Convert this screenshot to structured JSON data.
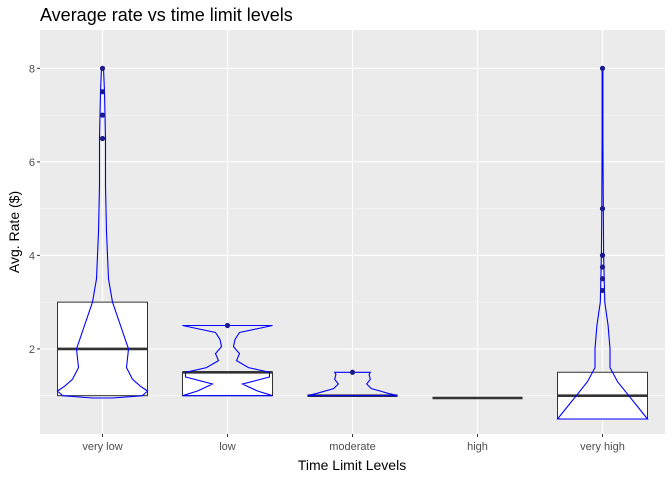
{
  "chart_data": {
    "type": "boxplot+violin",
    "title": "Average rate vs time limit levels",
    "xlabel": "Time Limit Levels",
    "ylabel": "Avg. Rate ($)",
    "categories": [
      "very low",
      "low",
      "moderate",
      "high",
      "very high"
    ],
    "y_ticks": [
      2,
      4,
      6,
      8
    ],
    "ylim": [
      0.18,
      8.82
    ],
    "grid": true,
    "background": "#ebebeb",
    "gridline_color": "#ffffff",
    "box_edge_color": "#333333",
    "violin_color": "#0000ff",
    "point_color": "#1a1a8c",
    "groups": [
      {
        "category": "very low",
        "box": {
          "q1": 1.0,
          "median": 2.0,
          "q3": 3.0
        },
        "violin": [
          [
            0.95,
            0.01
          ],
          [
            1.0,
            0.04
          ],
          [
            1.1,
            0.045
          ],
          [
            1.2,
            0.038
          ],
          [
            1.35,
            0.03
          ],
          [
            1.6,
            0.024
          ],
          [
            2.0,
            0.026
          ],
          [
            2.5,
            0.018
          ],
          [
            3.0,
            0.01
          ],
          [
            3.5,
            0.006
          ],
          [
            4.5,
            0.004
          ],
          [
            5.5,
            0.003
          ],
          [
            6.5,
            0.003
          ],
          [
            7.5,
            0.002
          ],
          [
            8.0,
            0.001
          ]
        ],
        "outliers": [
          6.5,
          7.0,
          7.5,
          8.0
        ]
      },
      {
        "category": "low",
        "box": {
          "q1": 1.0,
          "median": 1.5,
          "q3": 1.5
        },
        "violin": [
          [
            1.0,
            0.15
          ],
          [
            1.1,
            0.1
          ],
          [
            1.25,
            0.05
          ],
          [
            1.4,
            0.14
          ],
          [
            1.5,
            0.14
          ],
          [
            1.6,
            0.07
          ],
          [
            1.75,
            0.03
          ],
          [
            1.9,
            0.04
          ],
          [
            2.05,
            0.02
          ],
          [
            2.2,
            0.025
          ],
          [
            2.35,
            0.04
          ],
          [
            2.5,
            0.15
          ]
        ],
        "outliers": [
          2.5
        ]
      },
      {
        "category": "moderate",
        "box": {
          "q1": 1.0,
          "median": 1.0,
          "q3": 1.0
        },
        "violin": [
          [
            1.0,
            0.38
          ],
          [
            1.05,
            0.3
          ],
          [
            1.15,
            0.16
          ],
          [
            1.25,
            0.12
          ],
          [
            1.35,
            0.15
          ],
          [
            1.45,
            0.14
          ],
          [
            1.5,
            0.15
          ]
        ],
        "outliers": [
          1.5
        ]
      },
      {
        "category": "high",
        "box": {
          "q1": 0.95,
          "median": 0.95,
          "q3": 0.95
        },
        "violin": [],
        "outliers": []
      },
      {
        "category": "very high",
        "box": {
          "q1": 0.5,
          "median": 1.0,
          "q3": 1.5
        },
        "violin": [
          [
            0.5,
            0.12
          ],
          [
            0.8,
            0.09
          ],
          [
            1.0,
            0.07
          ],
          [
            1.3,
            0.04
          ],
          [
            1.6,
            0.02
          ],
          [
            2.0,
            0.02
          ],
          [
            2.5,
            0.015
          ],
          [
            3.0,
            0.006
          ],
          [
            4.0,
            0.003
          ],
          [
            5.0,
            0.002
          ],
          [
            6.5,
            0.001
          ],
          [
            8.0,
            0.001
          ]
        ],
        "outliers": [
          3.25,
          3.5,
          3.75,
          4.0,
          5.0,
          8.0
        ]
      }
    ]
  }
}
